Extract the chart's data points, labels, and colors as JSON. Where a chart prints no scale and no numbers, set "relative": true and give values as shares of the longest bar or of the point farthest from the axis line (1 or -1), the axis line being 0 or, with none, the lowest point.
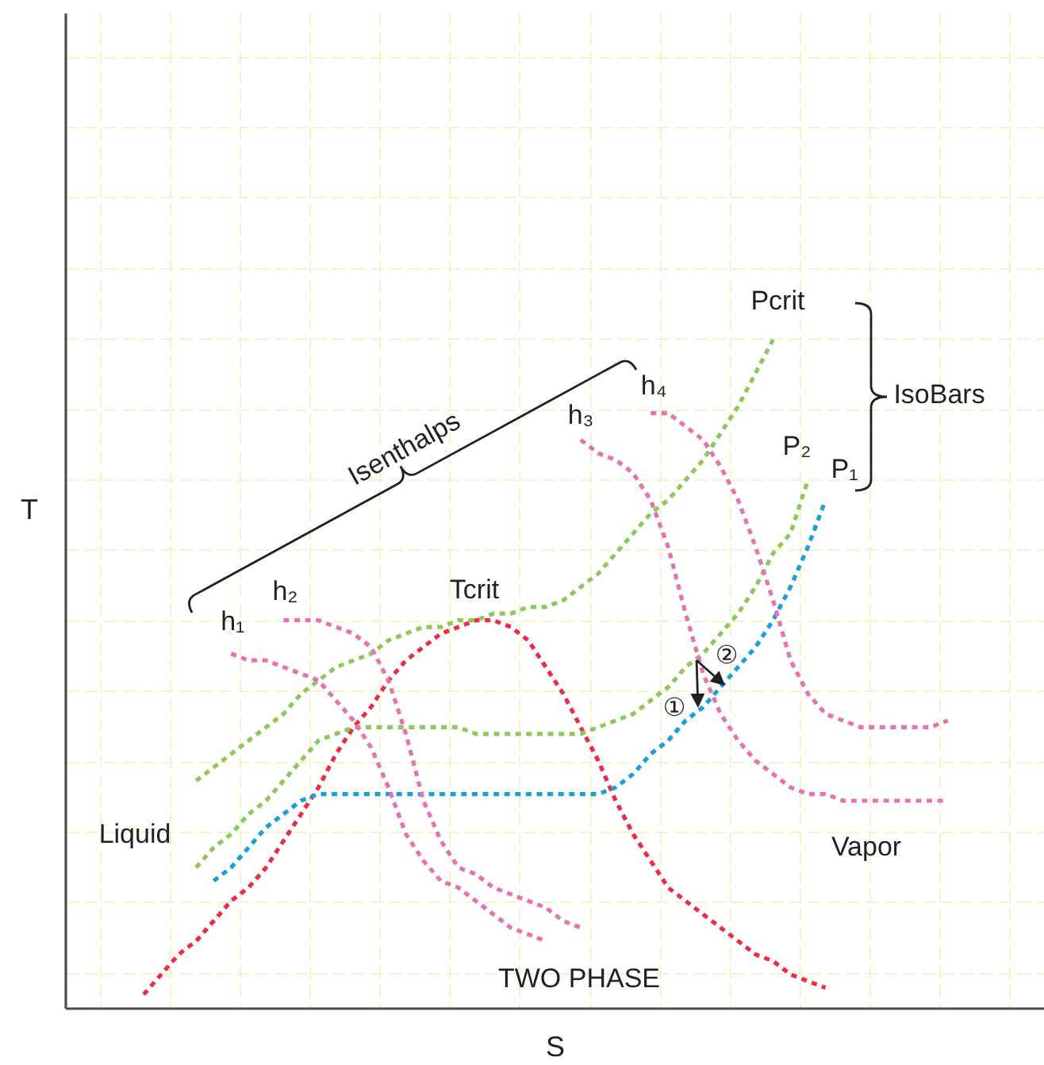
{
  "chart_data": {
    "type": "line",
    "relative": true,
    "xlabel": "S",
    "ylabel": "T",
    "grid": true,
    "line_style": "dotted",
    "categories": [
      null,
      null,
      null,
      null,
      null,
      null,
      null,
      null,
      null,
      null,
      null,
      null,
      null,
      null,
      null,
      null,
      null,
      null,
      null,
      null,
      null,
      null,
      null,
      null,
      null,
      null,
      null,
      null,
      null,
      null,
      null,
      null,
      null,
      null,
      null,
      null,
      null,
      null,
      null,
      null,
      null,
      null,
      null,
      null,
      null,
      null,
      null,
      null,
      null,
      null,
      null,
      null,
      null,
      null,
      null,
      null
    ],
    "series": [
      {
        "color": "#ee2a44",
        "values": [
          null,
          null,
          null,
          null,
          0.02,
          0.05,
          0.08,
          0.1,
          0.13,
          0.16,
          0.18,
          0.21,
          0.25,
          0.29,
          0.33,
          0.38,
          0.42,
          0.45,
          0.49,
          0.52,
          0.54,
          0.56,
          0.57,
          0.58,
          0.58,
          0.57,
          0.55,
          0.51,
          0.47,
          0.42,
          0.37,
          0.31,
          0.26,
          0.22,
          0.18,
          0.16,
          0.14,
          0.12,
          0.1,
          0.08,
          0.07,
          0.05,
          0.04,
          0.03,
          null,
          null,
          null,
          null,
          null,
          null,
          null,
          null,
          null,
          null,
          null,
          null
        ]
      },
      {
        "name": "P₁",
        "color": "#1c9fd6",
        "values": [
          null,
          null,
          null,
          null,
          null,
          null,
          null,
          null,
          0.19,
          0.21,
          0.24,
          0.27,
          0.29,
          0.31,
          0.32,
          0.32,
          0.32,
          0.32,
          0.32,
          0.32,
          0.32,
          0.32,
          0.32,
          0.32,
          0.32,
          0.32,
          0.32,
          0.32,
          0.32,
          0.32,
          0.32,
          0.33,
          0.35,
          0.38,
          0.4,
          0.43,
          0.45,
          0.48,
          0.51,
          0.54,
          0.58,
          0.63,
          0.69,
          0.76,
          null,
          null,
          null,
          null,
          null,
          null,
          null,
          null,
          null,
          null,
          null,
          null
        ]
      },
      {
        "name": "P₂",
        "color": "#8cc85a",
        "values": [
          null,
          null,
          null,
          null,
          null,
          null,
          null,
          0.21,
          0.24,
          0.26,
          0.29,
          0.31,
          0.34,
          0.37,
          0.4,
          0.41,
          0.42,
          0.42,
          0.42,
          0.42,
          0.42,
          0.42,
          0.42,
          0.41,
          0.41,
          0.41,
          0.41,
          0.41,
          0.41,
          0.41,
          0.42,
          0.43,
          0.44,
          0.46,
          0.48,
          0.51,
          0.53,
          0.56,
          0.59,
          0.63,
          0.68,
          0.71,
          0.79,
          null,
          null,
          null,
          null,
          null,
          null,
          null,
          null,
          null,
          null,
          null,
          null,
          null
        ]
      },
      {
        "name": "Pcrit",
        "color": "#8cc85a",
        "values": [
          null,
          null,
          null,
          null,
          null,
          null,
          null,
          0.34,
          0.36,
          0.38,
          0.4,
          0.42,
          0.44,
          0.47,
          0.49,
          0.51,
          0.52,
          0.53,
          0.55,
          0.56,
          0.57,
          0.57,
          0.58,
          0.58,
          0.59,
          0.59,
          0.6,
          0.6,
          0.61,
          0.63,
          0.65,
          0.68,
          0.71,
          0.74,
          0.76,
          0.79,
          0.82,
          0.86,
          0.9,
          0.95,
          1.0,
          null,
          null,
          null,
          null,
          null,
          null,
          null,
          null,
          null,
          null,
          null,
          null,
          null,
          null,
          null
        ]
      },
      {
        "name": "h₁",
        "color": "#e573b0",
        "values": [
          null,
          null,
          null,
          null,
          null,
          null,
          null,
          null,
          null,
          0.53,
          0.52,
          0.52,
          0.51,
          0.5,
          0.49,
          0.46,
          0.43,
          0.39,
          0.33,
          0.26,
          0.22,
          0.19,
          0.18,
          0.16,
          0.14,
          0.12,
          0.11,
          0.1,
          null,
          null,
          null,
          null,
          null,
          null,
          null,
          null,
          null,
          null,
          null,
          null,
          null,
          null,
          null,
          null,
          null,
          null,
          null,
          null,
          null,
          null,
          null,
          null,
          null,
          null,
          null,
          null
        ]
      },
      {
        "name": "h₂",
        "color": "#e573b0",
        "values": [
          null,
          null,
          null,
          null,
          null,
          null,
          null,
          null,
          null,
          null,
          null,
          null,
          0.58,
          0.58,
          0.58,
          0.57,
          0.56,
          0.54,
          0.49,
          0.41,
          0.31,
          0.25,
          0.21,
          0.2,
          0.18,
          0.17,
          0.16,
          0.15,
          0.13,
          0.12,
          null,
          null,
          null,
          null,
          null,
          null,
          null,
          null,
          null,
          null,
          null,
          null,
          null,
          null,
          null,
          null,
          null,
          null,
          null,
          null,
          null,
          null,
          null,
          null,
          null,
          null
        ]
      },
      {
        "name": "h₃",
        "color": "#e573b0",
        "values": [
          null,
          null,
          null,
          null,
          null,
          null,
          null,
          null,
          null,
          null,
          null,
          null,
          null,
          null,
          null,
          null,
          null,
          null,
          null,
          null,
          null,
          null,
          null,
          null,
          null,
          null,
          null,
          null,
          null,
          0.85,
          0.83,
          0.82,
          0.8,
          0.76,
          0.69,
          0.59,
          0.5,
          0.44,
          0.4,
          0.37,
          0.35,
          0.33,
          0.32,
          0.32,
          0.31,
          0.31,
          0.31,
          0.31,
          0.31,
          0.31,
          0.31,
          null,
          null,
          null,
          null,
          null
        ]
      },
      {
        "name": "h₄",
        "color": "#e573b0",
        "values": [
          null,
          null,
          null,
          null,
          null,
          null,
          null,
          null,
          null,
          null,
          null,
          null,
          null,
          null,
          null,
          null,
          null,
          null,
          null,
          null,
          null,
          null,
          null,
          null,
          null,
          null,
          null,
          null,
          null,
          null,
          null,
          null,
          null,
          0.89,
          0.89,
          0.87,
          0.85,
          0.81,
          0.76,
          0.69,
          0.61,
          0.52,
          0.47,
          0.44,
          0.43,
          0.42,
          0.42,
          0.42,
          0.42,
          0.42,
          0.43,
          null,
          null,
          null,
          null,
          null
        ]
      }
    ],
    "annotations": [
      "Liquid",
      "Vapor",
      "TWO PHASE",
      "Isenthalps",
      "IsoBars",
      "①",
      "②",
      {
        "text": "Tcrit",
        "y": 0.58
      }
    ]
  }
}
